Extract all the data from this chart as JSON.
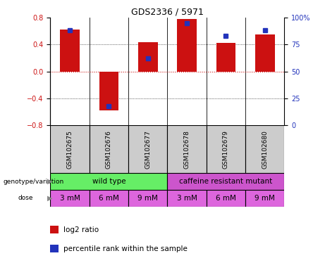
{
  "title": "GDS2336 / 5971",
  "samples": [
    "GSM102675",
    "GSM102676",
    "GSM102677",
    "GSM102678",
    "GSM102679",
    "GSM102680"
  ],
  "log2_ratio": [
    0.62,
    -0.58,
    0.43,
    0.78,
    0.42,
    0.55
  ],
  "percentile_rank": [
    88,
    18,
    62,
    95,
    83,
    88
  ],
  "ylim_left": [
    -0.8,
    0.8
  ],
  "ylim_right": [
    0,
    100
  ],
  "yticks_left": [
    -0.8,
    -0.4,
    0.0,
    0.4,
    0.8
  ],
  "yticks_right": [
    0,
    25,
    50,
    75,
    100
  ],
  "bar_color_red": "#cc1111",
  "bar_color_blue": "#2233bb",
  "zero_line_color": "#cc1111",
  "genotype_groups": [
    {
      "label": "wild type",
      "span": [
        0,
        3
      ],
      "color": "#66ee66"
    },
    {
      "label": "caffeine resistant mutant",
      "span": [
        3,
        6
      ],
      "color": "#cc55cc"
    }
  ],
  "dose_labels": [
    "3 mM",
    "6 mM",
    "9 mM",
    "3 mM",
    "6 mM",
    "9 mM"
  ],
  "dose_color": "#dd66dd",
  "sample_bg_color": "#cccccc",
  "legend_items": [
    {
      "label": "log2 ratio",
      "color": "#cc1111"
    },
    {
      "label": "percentile rank within the sample",
      "color": "#2233bb"
    }
  ],
  "background_color": "#ffffff",
  "left_label_color": "#555555",
  "arrow_color": "#888888"
}
